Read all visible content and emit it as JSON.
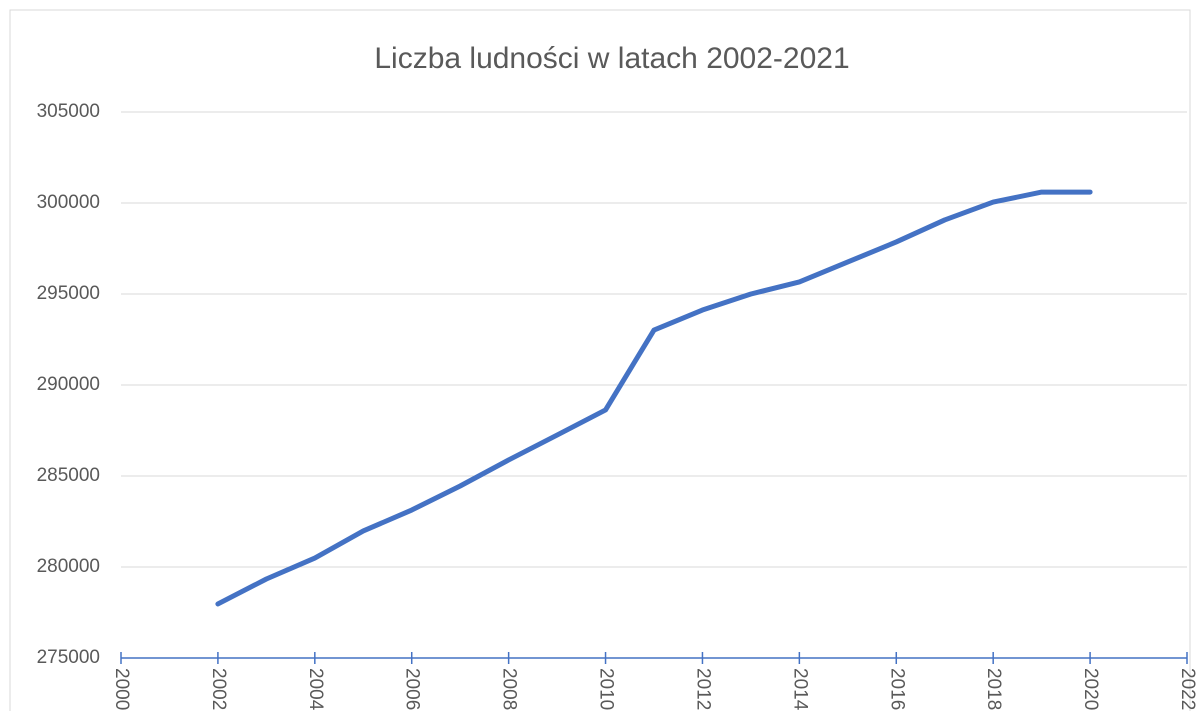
{
  "chart_data": {
    "type": "line",
    "title": "Liczba ludności w latach 2002-2021",
    "x": [
      2002,
      2003,
      2004,
      2005,
      2006,
      2007,
      2008,
      2009,
      2010,
      2011,
      2012,
      2013,
      2014,
      2015,
      2016,
      2017,
      2018,
      2019,
      2020
    ],
    "series": [
      {
        "name": "Liczba ludności",
        "color": "#4472c4",
        "values": [
          277970,
          279340,
          280490,
          281980,
          283130,
          284450,
          285880,
          287250,
          288630,
          293020,
          294120,
          295000,
          295660,
          296760,
          297860,
          299070,
          300050,
          300600,
          300600
        ]
      }
    ],
    "xlim": [
      2000,
      2022
    ],
    "xticks": [
      2000,
      2002,
      2004,
      2006,
      2008,
      2010,
      2012,
      2014,
      2016,
      2018,
      2020,
      2022
    ],
    "ylim": [
      275000,
      305000
    ],
    "yticks": [
      275000,
      280000,
      285000,
      290000,
      295000,
      300000,
      305000
    ],
    "grid": true
  }
}
